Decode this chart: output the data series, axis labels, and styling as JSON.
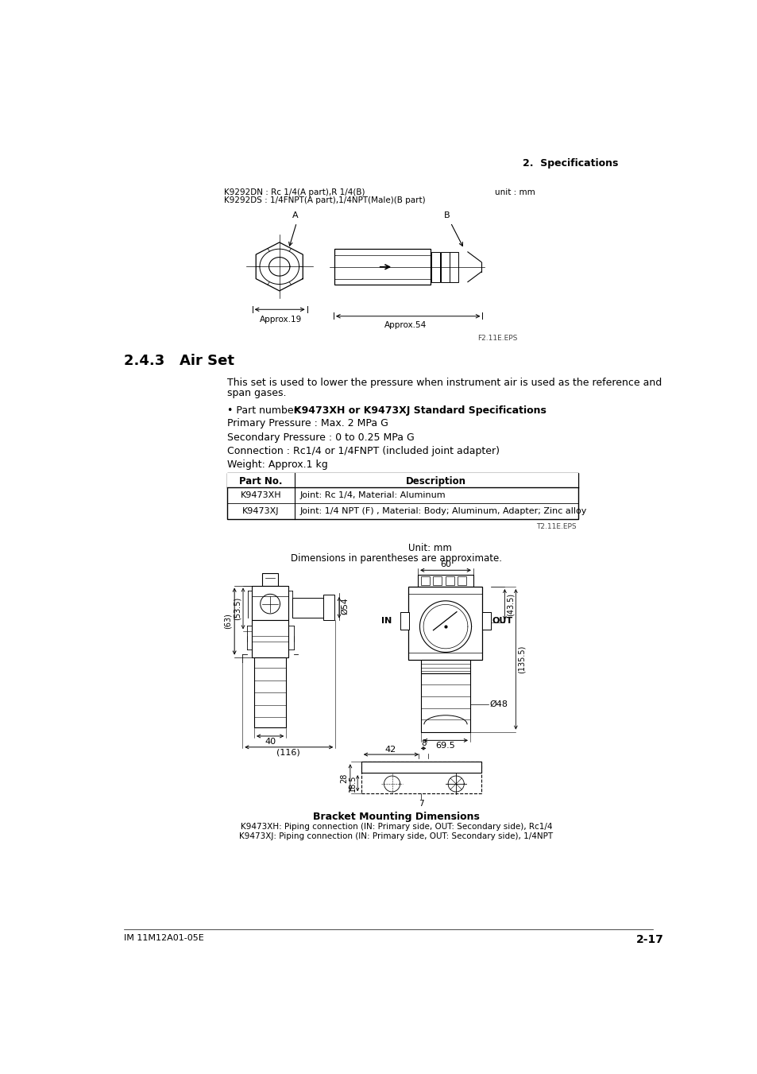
{
  "page_bg": "#ffffff",
  "header_right": "2.  Specifications",
  "top_label1": "K9292DN : Rc 1/4(A part),R 1/4(B)",
  "top_label2": "K9292DS : 1/4FNPT(A part),1/4NPT(Male)(B part)",
  "top_unit": "unit : mm",
  "fig1_caption": "F2.11E.EPS",
  "section_title": "2.4.3   Air Set",
  "body_text1": "This set is used to lower the pressure when instrument air is used as the reference and",
  "body_text2": "span gases.",
  "bullet_prefix": "• Part number: ",
  "bullet_bold": "K9473XH or K9473XJ Standard Specifications",
  "spec1": "Primary Pressure : Max. 2 MPa G",
  "spec2": "Secondary Pressure : 0 to 0.25 MPa G",
  "spec3": "Connection : Rc1/4 or 1/4FNPT (included joint adapter)",
  "spec4": "Weight: Approx.1 kg",
  "table_header": [
    "Part No.",
    "Description"
  ],
  "table_rows": [
    [
      "K9473XH",
      "Joint: Rc 1/4, Material: Aluminum"
    ],
    [
      "K9473XJ",
      "Joint: 1/4 NPT (F) , Material: Body; Aluminum, Adapter; Zinc alloy"
    ]
  ],
  "table_caption": "T2.11E.EPS",
  "fig2_unit": "Unit: mm",
  "fig2_dim_note": "Dimensions in parentheses are approximate.",
  "fig2_caption": "Bracket Mounting Dimensions",
  "fig2_note1": "K9473XH: Piping connection (IN: Primary side, OUT: Secondary side), Rc1/4",
  "fig2_note2": "K9473XJ: Piping connection (IN: Primary side, OUT: Secondary side), 1/4NPT",
  "footer_left": "IM 11M12A01-05E",
  "footer_right": "2-17"
}
